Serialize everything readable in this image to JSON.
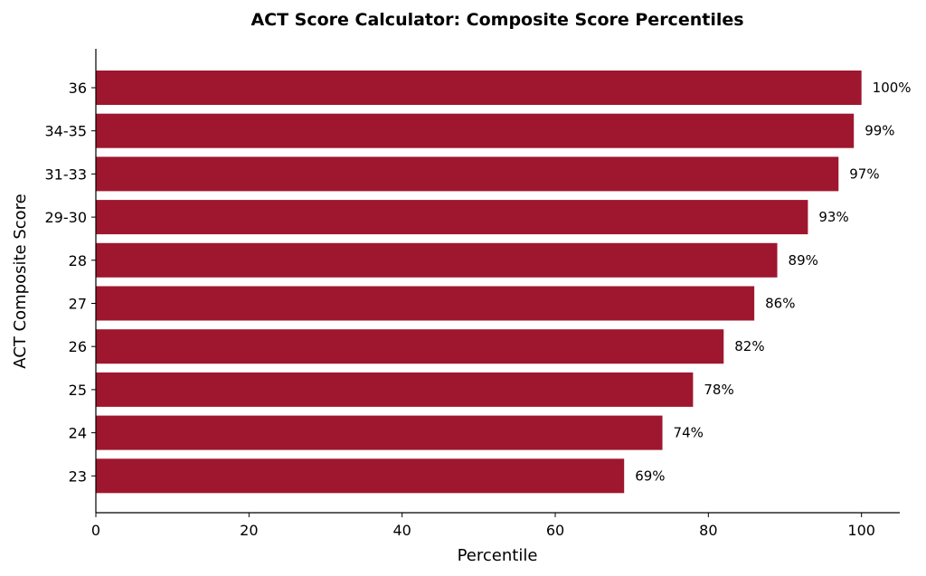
{
  "chart_data": {
    "type": "bar",
    "orientation": "horizontal",
    "title": "ACT Score Calculator: Composite Score Percentiles",
    "xlabel": "Percentile",
    "ylabel": "ACT Composite Score",
    "categories": [
      "36",
      "34-35",
      "31-33",
      "29-30",
      "28",
      "27",
      "26",
      "25",
      "24",
      "23"
    ],
    "values": [
      100,
      99,
      97,
      93,
      89,
      86,
      82,
      78,
      74,
      69
    ],
    "data_labels": [
      "100%",
      "99%",
      "97%",
      "93%",
      "89%",
      "86%",
      "82%",
      "78%",
      "74%",
      "69%"
    ],
    "xlim": [
      0,
      105
    ],
    "xticks": [
      0,
      20,
      40,
      60,
      80,
      100
    ],
    "grid": false,
    "bar_color": "#9e172e"
  }
}
